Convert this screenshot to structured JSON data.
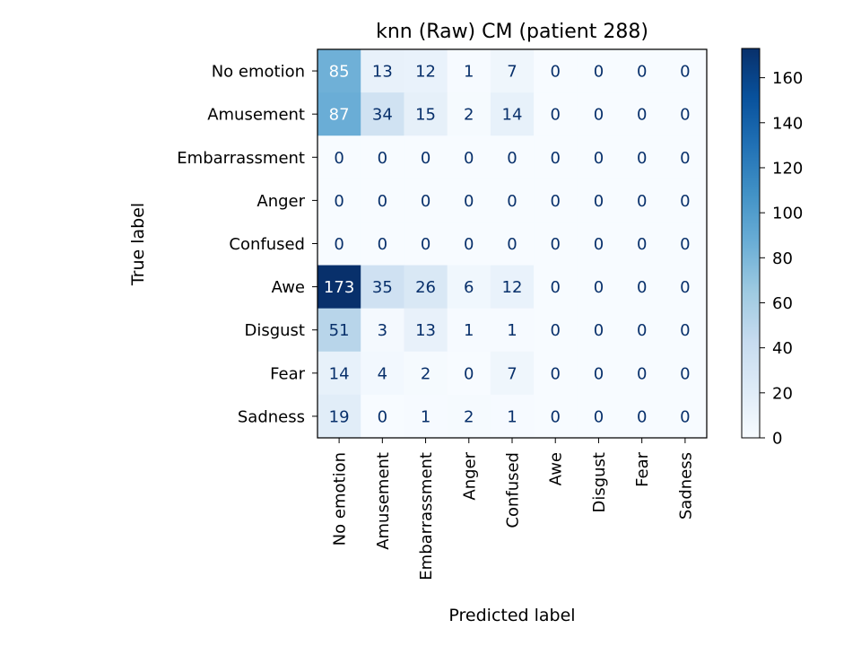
{
  "chart_data": {
    "type": "heatmap",
    "title": "knn (Raw) CM (patient 288)",
    "xlabel": "Predicted label",
    "ylabel": "True label",
    "x_categories": [
      "No emotion",
      "Amusement",
      "Embarrassment",
      "Anger",
      "Confused",
      "Awe",
      "Disgust",
      "Fear",
      "Sadness"
    ],
    "y_categories": [
      "No emotion",
      "Amusement",
      "Embarrassment",
      "Anger",
      "Confused",
      "Awe",
      "Disgust",
      "Fear",
      "Sadness"
    ],
    "values": [
      [
        85,
        13,
        12,
        1,
        7,
        0,
        0,
        0,
        0
      ],
      [
        87,
        34,
        15,
        2,
        14,
        0,
        0,
        0,
        0
      ],
      [
        0,
        0,
        0,
        0,
        0,
        0,
        0,
        0,
        0
      ],
      [
        0,
        0,
        0,
        0,
        0,
        0,
        0,
        0,
        0
      ],
      [
        0,
        0,
        0,
        0,
        0,
        0,
        0,
        0,
        0
      ],
      [
        173,
        35,
        26,
        6,
        12,
        0,
        0,
        0,
        0
      ],
      [
        51,
        3,
        13,
        1,
        1,
        0,
        0,
        0,
        0
      ],
      [
        14,
        4,
        2,
        0,
        7,
        0,
        0,
        0,
        0
      ],
      [
        19,
        0,
        1,
        2,
        1,
        0,
        0,
        0,
        0
      ]
    ],
    "colormap": "Blues",
    "colorbar": {
      "range": [
        0,
        173
      ],
      "ticks": [
        0,
        20,
        40,
        60,
        80,
        100,
        120,
        140,
        160
      ]
    }
  }
}
